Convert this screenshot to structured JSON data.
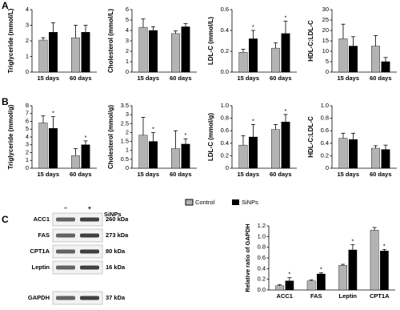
{
  "panel_labels": [
    "A",
    "B",
    "C"
  ],
  "blot": {
    "header": [
      "–",
      "+"
    ],
    "treatment": "SiNPs",
    "rows": [
      {
        "protein": "ACC1",
        "size": "260 kDa"
      },
      {
        "protein": "FAS",
        "size": "273 kDa"
      },
      {
        "protein": "CPT1A",
        "size": "80 kDa"
      },
      {
        "protein": "Leptin",
        "size": "16 kDa"
      },
      {
        "protein": "GAPDH",
        "size": "37 kDa"
      }
    ]
  },
  "chart_data": [
    {
      "type": "bar",
      "ylabel": "Triglyceride (mmol/L)",
      "categories": [
        "15 days",
        "60 days"
      ],
      "ylim": [
        0,
        4
      ],
      "yticks": [
        0,
        1,
        2,
        3,
        4
      ],
      "series": [
        {
          "name": "Control",
          "color": "#b3b3b3",
          "values": [
            2.05,
            2.2
          ],
          "errors": [
            0.15,
            0.8
          ],
          "significance": [
            null,
            null
          ]
        },
        {
          "name": "SiNPs",
          "color": "#000000",
          "values": [
            2.55,
            2.55
          ],
          "errors": [
            0.6,
            0.45
          ],
          "significance": [
            null,
            null
          ]
        }
      ]
    },
    {
      "type": "bar",
      "ylabel": "Cholesterol (mmol/L)",
      "categories": [
        "15 days",
        "60 days"
      ],
      "ylim": [
        0,
        6
      ],
      "yticks": [
        0,
        1,
        2,
        3,
        4,
        5,
        6
      ],
      "series": [
        {
          "name": "Control",
          "color": "#b3b3b3",
          "values": [
            4.3,
            3.7
          ],
          "errors": [
            0.8,
            0.25
          ],
          "significance": [
            null,
            null
          ]
        },
        {
          "name": "SiNPs",
          "color": "#000000",
          "values": [
            4.0,
            4.35
          ],
          "errors": [
            0.35,
            0.3
          ],
          "significance": [
            null,
            null
          ]
        }
      ]
    },
    {
      "type": "bar",
      "ylabel": "LDL-C (mmol/L)",
      "categories": [
        "15 days",
        "60 days"
      ],
      "ylim": [
        0,
        0.6
      ],
      "yticks": [
        {
          "value": 0,
          "label": "0.0"
        },
        0.2,
        0.4,
        0.6
      ],
      "series": [
        {
          "name": "Control",
          "color": "#b3b3b3",
          "values": [
            0.19,
            0.23
          ],
          "errors": [
            0.03,
            0.05
          ],
          "significance": [
            null,
            null
          ]
        },
        {
          "name": "SiNPs",
          "color": "#000000",
          "values": [
            0.32,
            0.37
          ],
          "errors": [
            0.08,
            0.12
          ],
          "significance": [
            "*",
            "*"
          ]
        }
      ]
    },
    {
      "type": "bar",
      "ylabel": "HDL-C:LDL-C",
      "categories": [
        "15 days",
        "60 days"
      ],
      "ylim": [
        0,
        30
      ],
      "yticks": [
        0,
        5,
        10,
        15,
        20,
        25,
        30
      ],
      "series": [
        {
          "name": "Control",
          "color": "#b3b3b3",
          "values": [
            16,
            12.5
          ],
          "errors": [
            7,
            5
          ],
          "significance": [
            null,
            null
          ]
        },
        {
          "name": "SiNPs",
          "color": "#000000",
          "values": [
            12.5,
            5
          ],
          "errors": [
            4.5,
            2
          ],
          "significance": [
            null,
            null
          ]
        }
      ]
    },
    {
      "type": "bar",
      "ylabel": "Triglyceride (mmol/g)",
      "categories": [
        "15 days",
        "60 days"
      ],
      "ylim": [
        0,
        8
      ],
      "yticks": [
        0,
        1,
        2,
        3,
        4,
        5,
        6,
        7,
        8
      ],
      "series": [
        {
          "name": "Control",
          "color": "#b3b3b3",
          "values": [
            5.8,
            1.6
          ],
          "errors": [
            0.9,
            0.9
          ],
          "significance": [
            null,
            null
          ]
        },
        {
          "name": "SiNPs",
          "color": "#000000",
          "values": [
            5.1,
            3.0
          ],
          "errors": [
            1.5,
            0.5
          ],
          "significance": [
            "*",
            "*"
          ]
        }
      ]
    },
    {
      "type": "bar",
      "ylabel": "Cholesterol (mmol/g)",
      "categories": [
        "15 days",
        "60 days"
      ],
      "ylim": [
        0,
        3.5
      ],
      "yticks": [
        0,
        0.5,
        1,
        1.5,
        2,
        2.5,
        3,
        3.5
      ],
      "series": [
        {
          "name": "Control",
          "color": "#b3b3b3",
          "values": [
            1.85,
            1.1
          ],
          "errors": [
            1.0,
            1.0
          ],
          "significance": [
            null,
            null
          ]
        },
        {
          "name": "SiNPs",
          "color": "#000000",
          "values": [
            1.5,
            1.35
          ],
          "errors": [
            0.5,
            0.3
          ],
          "significance": [
            "*",
            "*"
          ]
        }
      ]
    },
    {
      "type": "bar",
      "ylabel": "LDL-C (mmol/g)",
      "categories": [
        "15 days",
        "60 days"
      ],
      "ylim": [
        0,
        1
      ],
      "yticks": [
        0,
        0.2,
        0.4,
        0.6,
        0.8,
        {
          "value": 1,
          "label": "1.0"
        }
      ],
      "series": [
        {
          "name": "Control",
          "color": "#b3b3b3",
          "values": [
            0.37,
            0.62
          ],
          "errors": [
            0.15,
            0.08
          ],
          "significance": [
            null,
            null
          ]
        },
        {
          "name": "SiNPs",
          "color": "#000000",
          "values": [
            0.5,
            0.74
          ],
          "errors": [
            0.2,
            0.12
          ],
          "significance": [
            "*",
            "*"
          ]
        }
      ]
    },
    {
      "type": "bar",
      "ylabel": "HDL-C:LDL-C",
      "categories": [
        "15 days",
        "60 days"
      ],
      "ylim": [
        0,
        1
      ],
      "yticks": [
        0,
        0.2,
        0.4,
        0.6,
        0.8,
        {
          "value": 1,
          "label": "1.0"
        }
      ],
      "series": [
        {
          "name": "Control",
          "color": "#b3b3b3",
          "values": [
            0.48,
            0.32
          ],
          "errors": [
            0.08,
            0.04
          ],
          "significance": [
            null,
            null
          ]
        },
        {
          "name": "SiNPs",
          "color": "#000000",
          "values": [
            0.46,
            0.3
          ],
          "errors": [
            0.1,
            0.07
          ],
          "significance": [
            null,
            null
          ]
        }
      ]
    },
    {
      "type": "bar",
      "ylabel": "Relative ratio of GAPDH",
      "categories": [
        "ACC1",
        "FAS",
        "Leptin",
        "CPT1A"
      ],
      "ylim": [
        0,
        1.2
      ],
      "yticks": [
        {
          "value": 0,
          "label": "0.0"
        },
        0.2,
        0.4,
        0.6,
        0.8,
        {
          "value": 1,
          "label": "1.0"
        },
        1.2
      ],
      "series": [
        {
          "name": "Control",
          "color": "#b3b3b3",
          "values": [
            0.08,
            0.17,
            0.46,
            1.12
          ],
          "errors": [
            0.02,
            0.02,
            0.02,
            0.05
          ],
          "significance": [
            null,
            null,
            null,
            null
          ]
        },
        {
          "name": "SiNPs",
          "color": "#000000",
          "values": [
            0.17,
            0.3,
            0.75,
            0.73
          ],
          "errors": [
            0.06,
            0.02,
            0.1,
            0.03
          ],
          "significance": [
            "*",
            "*",
            "*",
            "*"
          ]
        }
      ]
    }
  ]
}
